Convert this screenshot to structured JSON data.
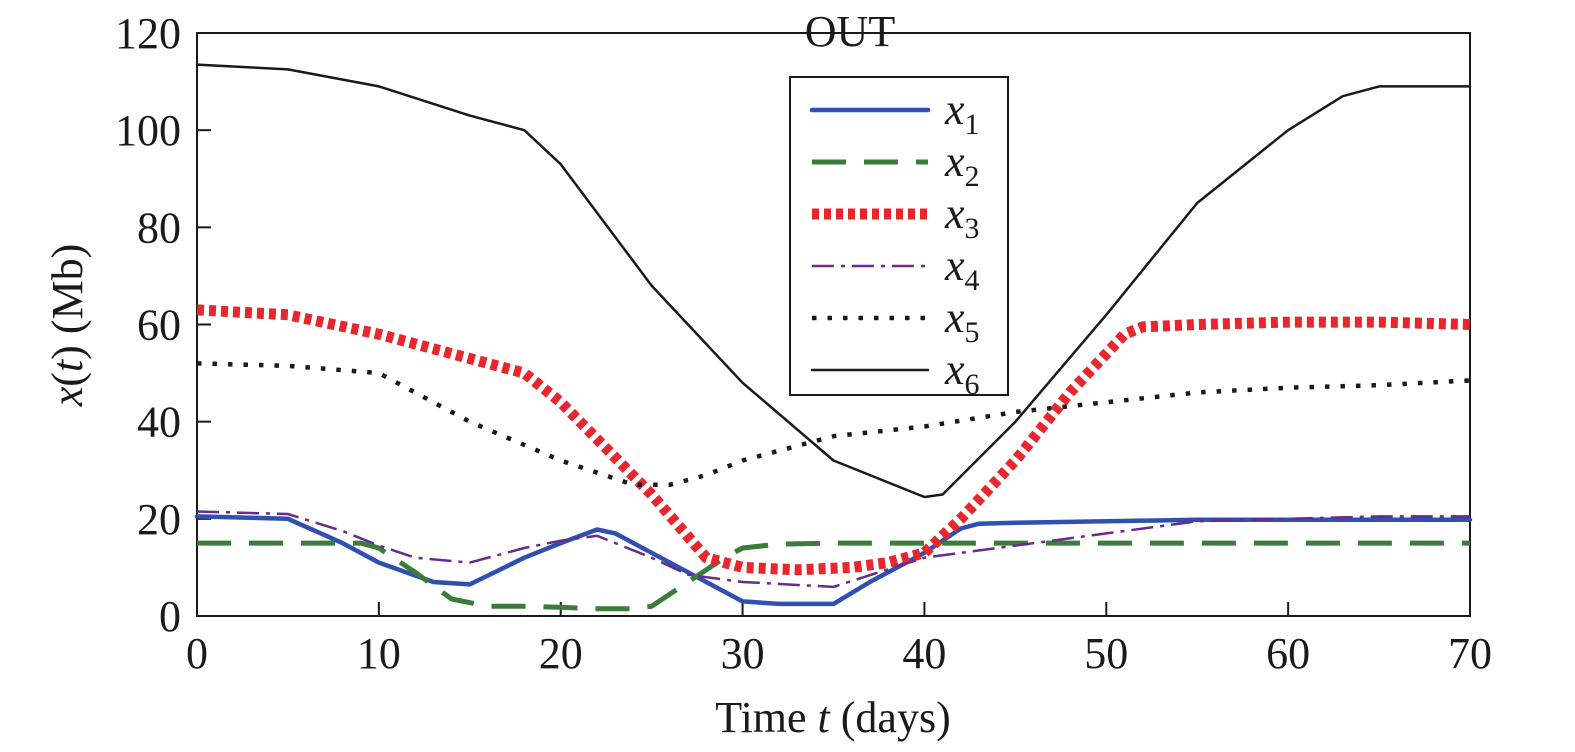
{
  "chart_data": {
    "type": "line",
    "title": "OUT",
    "xlabel": {
      "pre": "Time ",
      "var": "t",
      "post": " (days)"
    },
    "ylabel": {
      "var": "x",
      "paren_open": "(",
      "arg": "t",
      "paren_close": ")",
      "post": " (Mb)"
    },
    "xlim": [
      0,
      70
    ],
    "ylim": [
      0,
      120
    ],
    "xticks": [
      0,
      10,
      20,
      30,
      40,
      50,
      60,
      70
    ],
    "yticks": [
      0,
      20,
      40,
      60,
      80,
      100,
      120
    ],
    "grid": false,
    "legend_position": "top-center",
    "series": [
      {
        "name": "x",
        "sub": "1",
        "color": "#3050b0",
        "style": "solid-thick",
        "x": [
          0,
          5,
          8,
          10,
          13,
          15,
          18,
          20,
          22,
          23,
          25,
          28,
          30,
          32,
          35,
          37,
          40,
          42,
          43,
          45,
          50,
          55,
          60,
          65,
          70
        ],
        "y": [
          20.5,
          20,
          15,
          11,
          7,
          6.5,
          12,
          15,
          17.8,
          17,
          13,
          7,
          3,
          2.5,
          2.5,
          7,
          13,
          18,
          19,
          19.2,
          19.5,
          19.8,
          19.8,
          19.8,
          19.8
        ]
      },
      {
        "name": "x",
        "sub": "2",
        "color": "#3a7d3a",
        "style": "dashed",
        "x": [
          0,
          5,
          9,
          10,
          12,
          14,
          16,
          18,
          20,
          22,
          24,
          25,
          27,
          29,
          30,
          32,
          35,
          38,
          40,
          45,
          50,
          55,
          60,
          65,
          70
        ],
        "y": [
          15,
          15,
          15,
          14,
          9,
          3.5,
          2,
          2,
          1.8,
          1.5,
          1.5,
          2,
          7,
          12,
          14,
          14.8,
          15,
          15,
          15,
          15,
          15,
          15,
          15,
          15,
          15
        ]
      },
      {
        "name": "x",
        "sub": "3",
        "color": "#e8262b",
        "style": "dotted-thick",
        "x": [
          0,
          5,
          10,
          15,
          18,
          20,
          25,
          28,
          30,
          33,
          36,
          38,
          40,
          42,
          45,
          48,
          51,
          52,
          55,
          60,
          65,
          70
        ],
        "y": [
          63,
          62,
          58,
          53,
          50,
          44,
          25,
          12,
          10,
          9.5,
          10,
          11,
          13,
          20,
          32,
          46,
          58,
          59.5,
          60,
          60.5,
          60.5,
          60
        ]
      },
      {
        "name": "x",
        "sub": "4",
        "color": "#6a2a8a",
        "style": "dashdot",
        "x": [
          0,
          5,
          8,
          10,
          12,
          15,
          18,
          20,
          22,
          25,
          27,
          30,
          35,
          40,
          45,
          50,
          55,
          60,
          65,
          70
        ],
        "y": [
          21.5,
          21,
          17.5,
          14.5,
          12,
          11,
          14,
          15.5,
          16.5,
          12,
          8.5,
          7,
          6,
          12,
          14.5,
          17,
          19.5,
          20,
          20.5,
          20.5
        ]
      },
      {
        "name": "x",
        "sub": "5",
        "color": "#1a1a1a",
        "style": "dotted",
        "x": [
          0,
          5,
          10,
          12,
          15,
          20,
          24,
          26,
          28,
          30,
          35,
          40,
          45,
          50,
          55,
          60,
          65,
          70
        ],
        "y": [
          52,
          51.5,
          50,
          46,
          40,
          32,
          27,
          27,
          29,
          32,
          37,
          39,
          42,
          44,
          46,
          47,
          47.5,
          48.5
        ]
      },
      {
        "name": "x",
        "sub": "6",
        "color": "#1a1a1a",
        "style": "solid-thin",
        "x": [
          0,
          5,
          10,
          15,
          18,
          20,
          25,
          30,
          35,
          40,
          41,
          45,
          50,
          55,
          60,
          63,
          65,
          70
        ],
        "y": [
          113.5,
          112.5,
          109,
          103,
          100,
          93,
          68,
          48,
          32,
          24.5,
          25,
          40,
          62,
          85,
          100,
          107,
          109,
          109
        ]
      }
    ]
  }
}
